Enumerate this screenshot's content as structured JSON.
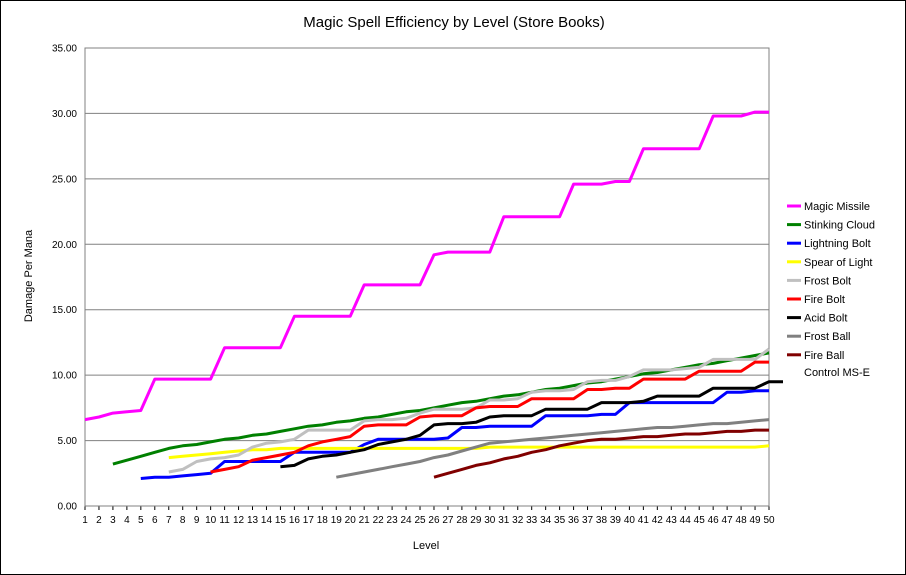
{
  "chart_data": {
    "type": "line",
    "title": "Magic Spell Efficiency by Level (Store Books)",
    "xlabel": "Level",
    "ylabel": "Damage Per Mana",
    "xlim": [
      1,
      50
    ],
    "ylim": [
      0,
      35
    ],
    "x_ticks": [
      "1",
      "2",
      "3",
      "4",
      "5",
      "6",
      "7",
      "8",
      "9",
      "10",
      "11",
      "12",
      "13",
      "14",
      "15",
      "16",
      "17",
      "18",
      "19",
      "20",
      "21",
      "22",
      "23",
      "24",
      "25",
      "26",
      "27",
      "28",
      "29",
      "30",
      "31",
      "32",
      "33",
      "34",
      "35",
      "36",
      "37",
      "38",
      "39",
      "40",
      "41",
      "42",
      "43",
      "44",
      "45",
      "46",
      "47",
      "48",
      "49",
      "50"
    ],
    "y_ticks": [
      "0.00",
      "5.00",
      "10.00",
      "15.00",
      "20.00",
      "25.00",
      "30.00",
      "35.00"
    ],
    "grid": "horizontal",
    "legend_position": "right",
    "legend_extra": "Control MS-E",
    "series": [
      {
        "name": "Magic Missile",
        "color": "#ff00ff",
        "start": 1,
        "values": [
          6.6,
          6.8,
          7.1,
          7.2,
          7.3,
          9.7,
          9.7,
          9.7,
          9.7,
          9.7,
          12.1,
          12.1,
          12.1,
          12.1,
          12.1,
          14.5,
          14.5,
          14.5,
          14.5,
          14.5,
          16.9,
          16.9,
          16.9,
          16.9,
          16.9,
          19.2,
          19.4,
          19.4,
          19.4,
          19.4,
          22.1,
          22.1,
          22.1,
          22.1,
          22.1,
          24.6,
          24.6,
          24.6,
          24.8,
          24.8,
          27.3,
          27.3,
          27.3,
          27.3,
          27.3,
          29.8,
          29.8,
          29.8,
          30.1,
          30.1
        ]
      },
      {
        "name": "Stinking Cloud",
        "color": "#008000",
        "start": 3,
        "values": [
          3.2,
          3.5,
          3.8,
          4.1,
          4.4,
          4.6,
          4.7,
          4.9,
          5.1,
          5.2,
          5.4,
          5.5,
          5.7,
          5.9,
          6.1,
          6.2,
          6.4,
          6.5,
          6.7,
          6.8,
          7.0,
          7.2,
          7.3,
          7.5,
          7.7,
          7.9,
          8.0,
          8.2,
          8.4,
          8.5,
          8.7,
          8.9,
          9.0,
          9.2,
          9.4,
          9.5,
          9.7,
          9.9,
          10.1,
          10.2,
          10.4,
          10.6,
          10.8,
          10.9,
          11.1,
          11.3,
          11.5,
          11.7
        ]
      },
      {
        "name": "Lightning Bolt",
        "color": "#0000ff",
        "start": 5,
        "values": [
          2.1,
          2.2,
          2.2,
          2.3,
          2.4,
          2.5,
          3.4,
          3.4,
          3.4,
          3.4,
          3.4,
          4.1,
          4.1,
          4.1,
          4.1,
          4.1,
          4.7,
          5.1,
          5.1,
          5.1,
          5.1,
          5.1,
          5.2,
          6.0,
          6.0,
          6.1,
          6.1,
          6.1,
          6.1,
          6.9,
          6.9,
          6.9,
          6.9,
          7.0,
          7.0,
          7.9,
          7.9,
          7.9,
          7.9,
          7.9,
          7.9,
          7.9,
          8.7,
          8.7,
          8.8,
          8.8
        ]
      },
      {
        "name": "Spear of Light",
        "color": "#ffff00",
        "start": 7,
        "values": [
          3.7,
          3.8,
          3.9,
          4.0,
          4.1,
          4.2,
          4.3,
          4.3,
          4.4,
          4.4,
          4.4,
          4.4,
          4.4,
          4.4,
          4.4,
          4.4,
          4.4,
          4.4,
          4.4,
          4.4,
          4.4,
          4.4,
          4.4,
          4.5,
          4.5,
          4.5,
          4.5,
          4.5,
          4.5,
          4.5,
          4.5,
          4.5,
          4.5,
          4.5,
          4.5,
          4.5,
          4.5,
          4.5,
          4.5,
          4.5,
          4.5,
          4.5,
          4.5,
          4.6
        ]
      },
      {
        "name": "Frost Bolt",
        "color": "#c0c0c0",
        "start": 7,
        "values": [
          2.6,
          2.8,
          3.4,
          3.6,
          3.7,
          3.9,
          4.5,
          4.8,
          4.9,
          5.1,
          5.8,
          5.8,
          5.8,
          5.8,
          6.5,
          6.6,
          6.6,
          6.7,
          7.1,
          7.4,
          7.4,
          7.4,
          7.5,
          8.1,
          8.1,
          8.2,
          8.7,
          8.8,
          8.8,
          8.9,
          9.5,
          9.6,
          9.6,
          9.9,
          10.4,
          10.4,
          10.4,
          10.5,
          10.6,
          11.2,
          11.2,
          11.2,
          11.2,
          12.0
        ]
      },
      {
        "name": "Fire Bolt",
        "color": "#ff0000",
        "start": 10,
        "values": [
          2.6,
          2.8,
          3.0,
          3.5,
          3.7,
          3.9,
          4.1,
          4.6,
          4.9,
          5.1,
          5.3,
          6.1,
          6.2,
          6.2,
          6.2,
          6.8,
          6.9,
          6.9,
          6.9,
          7.5,
          7.6,
          7.6,
          7.6,
          8.2,
          8.2,
          8.2,
          8.2,
          8.9,
          8.9,
          9.0,
          9.0,
          9.7,
          9.7,
          9.7,
          9.7,
          10.3,
          10.3,
          10.3,
          10.3,
          11.0,
          11.0
        ]
      },
      {
        "name": "Acid Bolt",
        "color": "#000000",
        "start": 15,
        "values": [
          3.0,
          3.1,
          3.6,
          3.8,
          3.9,
          4.1,
          4.3,
          4.7,
          4.9,
          5.1,
          5.4,
          6.2,
          6.3,
          6.3,
          6.4,
          6.8,
          6.9,
          6.9,
          6.9,
          7.4,
          7.4,
          7.4,
          7.4,
          7.9,
          7.9,
          7.9,
          8.0,
          8.4,
          8.4,
          8.4,
          8.4,
          9.0,
          9.0,
          9.0,
          9.0,
          9.5,
          9.5
        ]
      },
      {
        "name": "Frost Ball",
        "color": "#808080",
        "start": 19,
        "values": [
          2.2,
          2.4,
          2.6,
          2.8,
          3.0,
          3.2,
          3.4,
          3.7,
          3.9,
          4.2,
          4.5,
          4.8,
          4.9,
          5.0,
          5.1,
          5.2,
          5.3,
          5.4,
          5.5,
          5.6,
          5.7,
          5.8,
          5.9,
          6.0,
          6.0,
          6.1,
          6.2,
          6.3,
          6.3,
          6.4,
          6.5,
          6.6
        ]
      },
      {
        "name": "Fire Ball",
        "color": "#800000",
        "start": 26,
        "values": [
          2.2,
          2.5,
          2.8,
          3.1,
          3.3,
          3.6,
          3.8,
          4.1,
          4.3,
          4.6,
          4.8,
          5.0,
          5.1,
          5.1,
          5.2,
          5.3,
          5.3,
          5.4,
          5.5,
          5.5,
          5.6,
          5.7,
          5.7,
          5.8,
          5.8
        ]
      }
    ]
  }
}
